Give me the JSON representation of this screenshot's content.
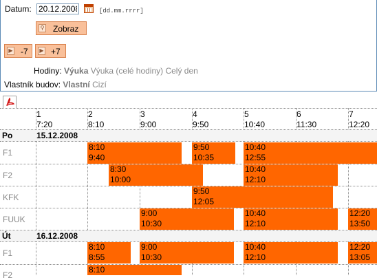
{
  "form": {
    "date_label": "Datum:",
    "date_value": "20.12.2008",
    "date_hint": "[dd.mm.rrrr]",
    "show_button": "Zobraz",
    "back_button": "-7",
    "forward_button": "+7",
    "hours_label": "Hodiny:",
    "hours_options": [
      "Výuka",
      "Výuka (celé hodiny)",
      "Celý den"
    ],
    "owner_label": "Vlastník budov:",
    "owner_options": [
      "Vlastní",
      "Cizí"
    ]
  },
  "schedule": {
    "slots": [
      {
        "num": "1",
        "time": "7:20"
      },
      {
        "num": "2",
        "time": "8:10"
      },
      {
        "num": "3",
        "time": "9:00"
      },
      {
        "num": "4",
        "time": "9:50"
      },
      {
        "num": "5",
        "time": "10:40"
      },
      {
        "num": "6",
        "time": "11:30"
      },
      {
        "num": "7",
        "time": "12:20"
      }
    ],
    "days": [
      {
        "day": "Po",
        "date": "15.12.2008",
        "rooms": [
          {
            "name": "F1",
            "events": [
              {
                "start": "8:10",
                "end": "9:40"
              },
              {
                "start": "9:50",
                "end": "10:35"
              },
              {
                "start": "10:40",
                "end": "12:55"
              }
            ]
          },
          {
            "name": "F2",
            "events": [
              {
                "start": "8:30",
                "end": "10:00"
              },
              {
                "start": "10:40",
                "end": "12:10"
              }
            ]
          },
          {
            "name": "KFK",
            "events": [
              {
                "start": "9:50",
                "end": "12:05"
              }
            ]
          },
          {
            "name": "FUUK",
            "events": [
              {
                "start": "9:00",
                "end": "10:30"
              },
              {
                "start": "10:40",
                "end": "12:10"
              },
              {
                "start": "12:20",
                "end": "13:50"
              }
            ]
          }
        ]
      },
      {
        "day": "Út",
        "date": "16.12.2008",
        "rooms": [
          {
            "name": "F1",
            "events": [
              {
                "start": "8:10",
                "end": "8:55"
              },
              {
                "start": "9:00",
                "end": "10:30"
              },
              {
                "start": "10:40",
                "end": "12:10"
              },
              {
                "start": "12:20",
                "end": "13:05"
              }
            ]
          },
          {
            "name": "F2",
            "events": [
              {
                "start": "8:10",
                "end": ""
              }
            ]
          }
        ]
      }
    ]
  }
}
